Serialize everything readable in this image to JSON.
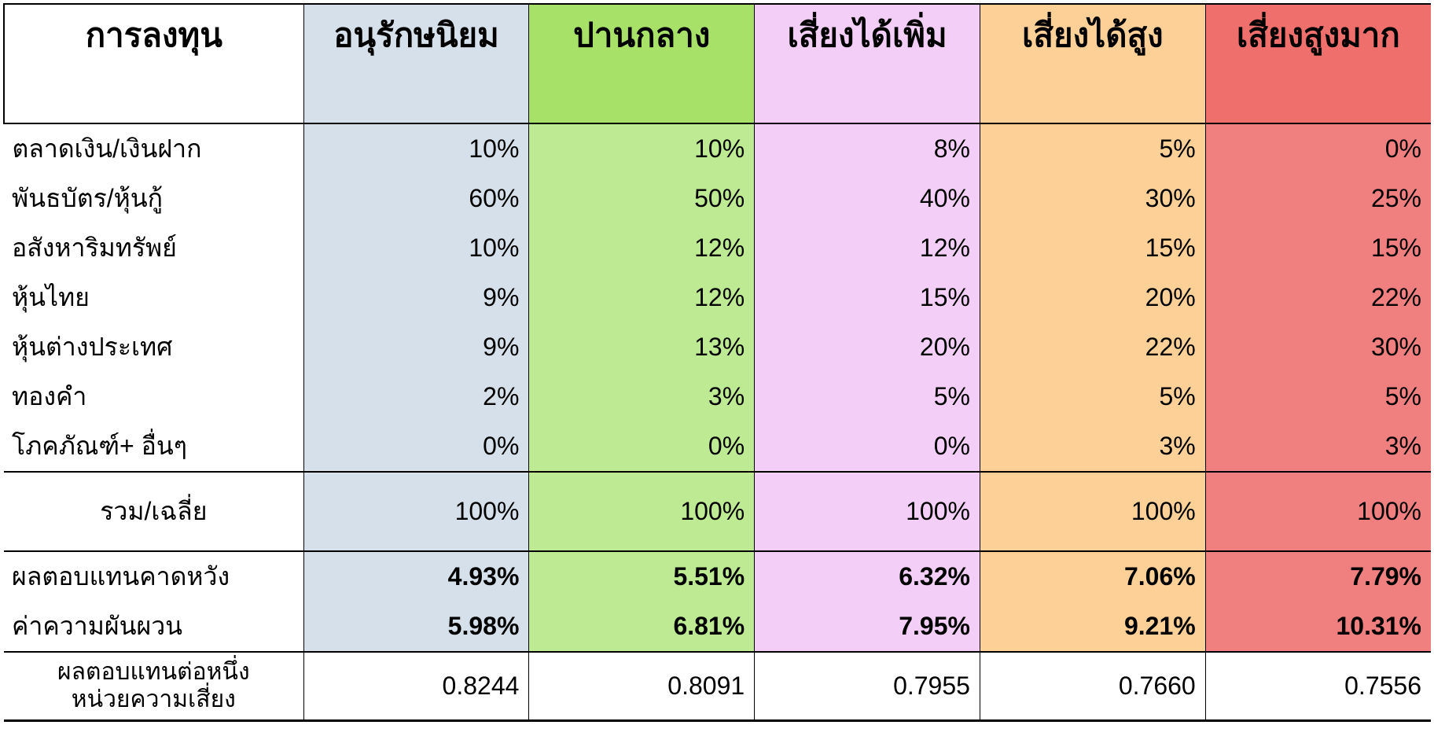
{
  "type": "table",
  "background_color": "#ffffff",
  "border_color": "#000000",
  "text_color": "#000000",
  "header_fontsize_pt": 32,
  "body_fontsize_pt": 24,
  "column_bg": {
    "label": "#ffffff",
    "conservative": "#d6e0ea",
    "moderate": "#bdea92",
    "moderate_header": "#a8e168",
    "growth": "#f3cff7",
    "high": "#fcd097",
    "veryhigh": "#f08080",
    "veryhigh_header": "#ef6f6c"
  },
  "columns": [
    "การลงทุน",
    "อนุรักษนิยม",
    "ปานกลาง",
    "เสี่ยงได้เพิ่ม",
    "เสี่ยงได้สูง",
    "เสี่ยงสูงมาก"
  ],
  "alloc_rows": [
    {
      "label": "ตลาดเงิน/เงินฝาก",
      "v": [
        "10%",
        "10%",
        "8%",
        "5%",
        "0%"
      ]
    },
    {
      "label": "พันธบัตร/หุ้นกู้",
      "v": [
        "60%",
        "50%",
        "40%",
        "30%",
        "25%"
      ]
    },
    {
      "label": "อสังหาริมทรัพย์",
      "v": [
        "10%",
        "12%",
        "12%",
        "15%",
        "15%"
      ]
    },
    {
      "label": "หุ้นไทย",
      "v": [
        "9%",
        "12%",
        "15%",
        "20%",
        "22%"
      ]
    },
    {
      "label": "หุ้นต่างประเทศ",
      "v": [
        "9%",
        "13%",
        "20%",
        "22%",
        "30%"
      ]
    },
    {
      "label": "ทองคำ",
      "v": [
        "2%",
        "3%",
        "5%",
        "5%",
        "5%"
      ]
    },
    {
      "label": "โภคภัณฑ์+ อื่นๆ",
      "v": [
        "0%",
        "0%",
        "0%",
        "3%",
        "3%"
      ]
    }
  ],
  "total": {
    "label": "รวม/เฉลี่ย",
    "v": [
      "100%",
      "100%",
      "100%",
      "100%",
      "100%"
    ]
  },
  "metrics": [
    {
      "label": "ผลตอบแทนคาดหวัง",
      "v": [
        "4.93%",
        "5.51%",
        "6.32%",
        "7.06%",
        "7.79%"
      ],
      "bold": true
    },
    {
      "label": "ค่าความผันผวน",
      "v": [
        "5.98%",
        "6.81%",
        "7.95%",
        "9.21%",
        "10.31%"
      ],
      "bold": true
    }
  ],
  "ratio": {
    "label": "ผลตอบแทนต่อหนึ่งหน่วยความเสี่ยง",
    "v": [
      "0.8244",
      "0.8091",
      "0.7955",
      "0.7660",
      "0.7556"
    ]
  }
}
